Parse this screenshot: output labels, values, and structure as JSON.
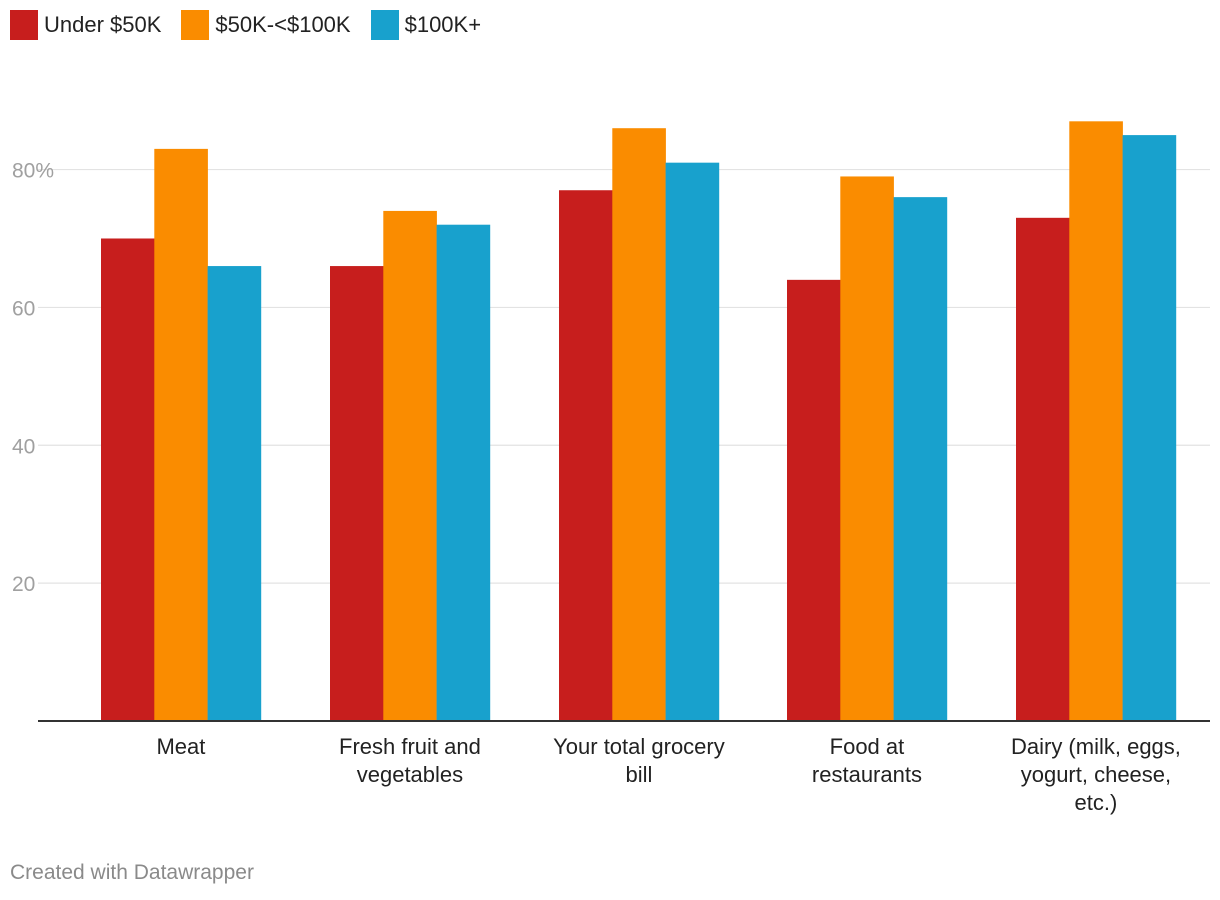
{
  "chart_data": {
    "type": "bar",
    "title": "",
    "xlabel": "",
    "ylabel": "",
    "ylim": [
      0,
      90
    ],
    "y_ticks": [
      {
        "value": 20,
        "label": "20"
      },
      {
        "value": 40,
        "label": "40"
      },
      {
        "value": 60,
        "label": "60"
      },
      {
        "value": 80,
        "label": "80%"
      }
    ],
    "categories": [
      [
        "Meat"
      ],
      [
        "Fresh fruit and",
        "vegetables"
      ],
      [
        "Your total grocery",
        "bill"
      ],
      [
        "Food at",
        "restaurants"
      ],
      [
        "Dairy (milk, eggs,",
        "yogurt, cheese,",
        "etc.)"
      ]
    ],
    "series": [
      {
        "name": "Under $50K",
        "color": "#c71e1d",
        "values": [
          70,
          66,
          77,
          64,
          73
        ]
      },
      {
        "name": "$50K-<$100K",
        "color": "#fa8c00",
        "values": [
          83,
          74,
          86,
          79,
          87
        ]
      },
      {
        "name": "$100K+",
        "color": "#18a1cd",
        "values": [
          66,
          72,
          81,
          76,
          85
        ]
      }
    ],
    "grid": true,
    "legend_position": "top-left"
  },
  "footer": {
    "credit": "Created with Datawrapper"
  }
}
